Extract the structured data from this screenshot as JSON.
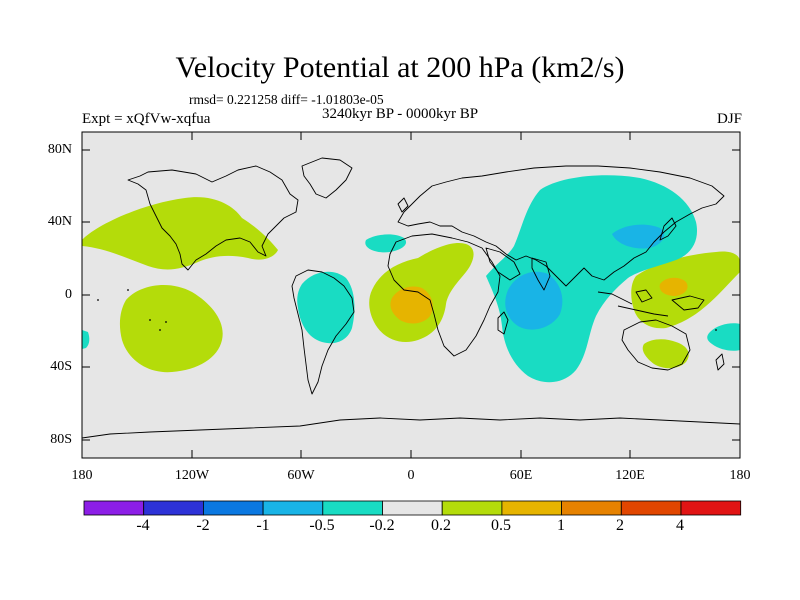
{
  "title": "Velocity Potential at 200 hPa (km2/s)",
  "stats": "rmsd= 0.221258 diff= -1.01803e-05",
  "experiment": "Expt = xQfVw-xqfua",
  "period": "3240kyr BP - 0000kyr BP",
  "season": "DJF",
  "lat_labels": [
    "80N",
    "40N",
    "0",
    "40S",
    "80S"
  ],
  "lon_labels": [
    "180",
    "120W",
    "60W",
    "0",
    "60E",
    "120E",
    "180"
  ],
  "colorbar": {
    "colors": [
      "#8c1ee6",
      "#2d32d7",
      "#0a78e1",
      "#19b4e6",
      "#19dcc3",
      "#e6e6e6",
      "#b4dc0a",
      "#e6b400",
      "#e68200",
      "#e14600",
      "#e11414"
    ],
    "labels": [
      "-4",
      "-2",
      "-1",
      "-0.5",
      "-0.2",
      "0.2",
      "0.5",
      "1",
      "2",
      "4"
    ]
  },
  "colors": {
    "background": "#e6e6e6",
    "coast": "#000000"
  }
}
